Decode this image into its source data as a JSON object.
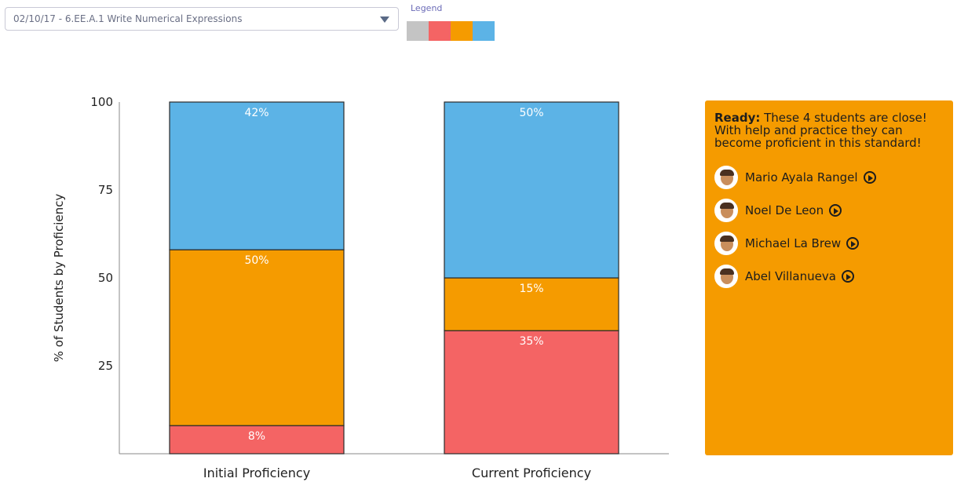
{
  "selector": {
    "value": "02/10/17 - 6.EE.A.1 Write Numerical Expressions"
  },
  "legend": {
    "label": "Legend",
    "swatches": [
      {
        "name": "gray-swatch",
        "color": "#c4c4c4"
      },
      {
        "name": "red-swatch",
        "color": "#f46464"
      },
      {
        "name": "orange-swatch",
        "color": "#f59b00"
      },
      {
        "name": "blue-swatch",
        "color": "#5cb3e6"
      }
    ]
  },
  "chart_data": {
    "type": "bar",
    "stacked": true,
    "categories": [
      "Initial Proficiency",
      "Current Proficiency"
    ],
    "ylabel": "% of Students by Proficiency",
    "yticks": [
      25,
      50,
      75,
      100
    ],
    "ylim": [
      0,
      100
    ],
    "grid": false,
    "stacks": [
      {
        "category": "Initial Proficiency",
        "segments": [
          {
            "label": "8%",
            "value": 8,
            "color": "#f46464"
          },
          {
            "label": "50%",
            "value": 50,
            "color": "#f59b00"
          },
          {
            "label": "42%",
            "value": 42,
            "color": "#5cb3e6"
          }
        ]
      },
      {
        "category": "Current Proficiency",
        "segments": [
          {
            "label": "35%",
            "value": 35,
            "color": "#f46464"
          },
          {
            "label": "15%",
            "value": 15,
            "color": "#f59b00"
          },
          {
            "label": "50%",
            "value": 50,
            "color": "#5cb3e6"
          }
        ]
      }
    ]
  },
  "panel": {
    "bold": "Ready:",
    "message": " These 4 students are close! With help and practice they can become proficient in this standard!",
    "students": [
      {
        "name": "Mario Ayala Rangel"
      },
      {
        "name": "Noel De Leon"
      },
      {
        "name": "Michael La Brew"
      },
      {
        "name": "Abel Villanueva"
      }
    ]
  }
}
